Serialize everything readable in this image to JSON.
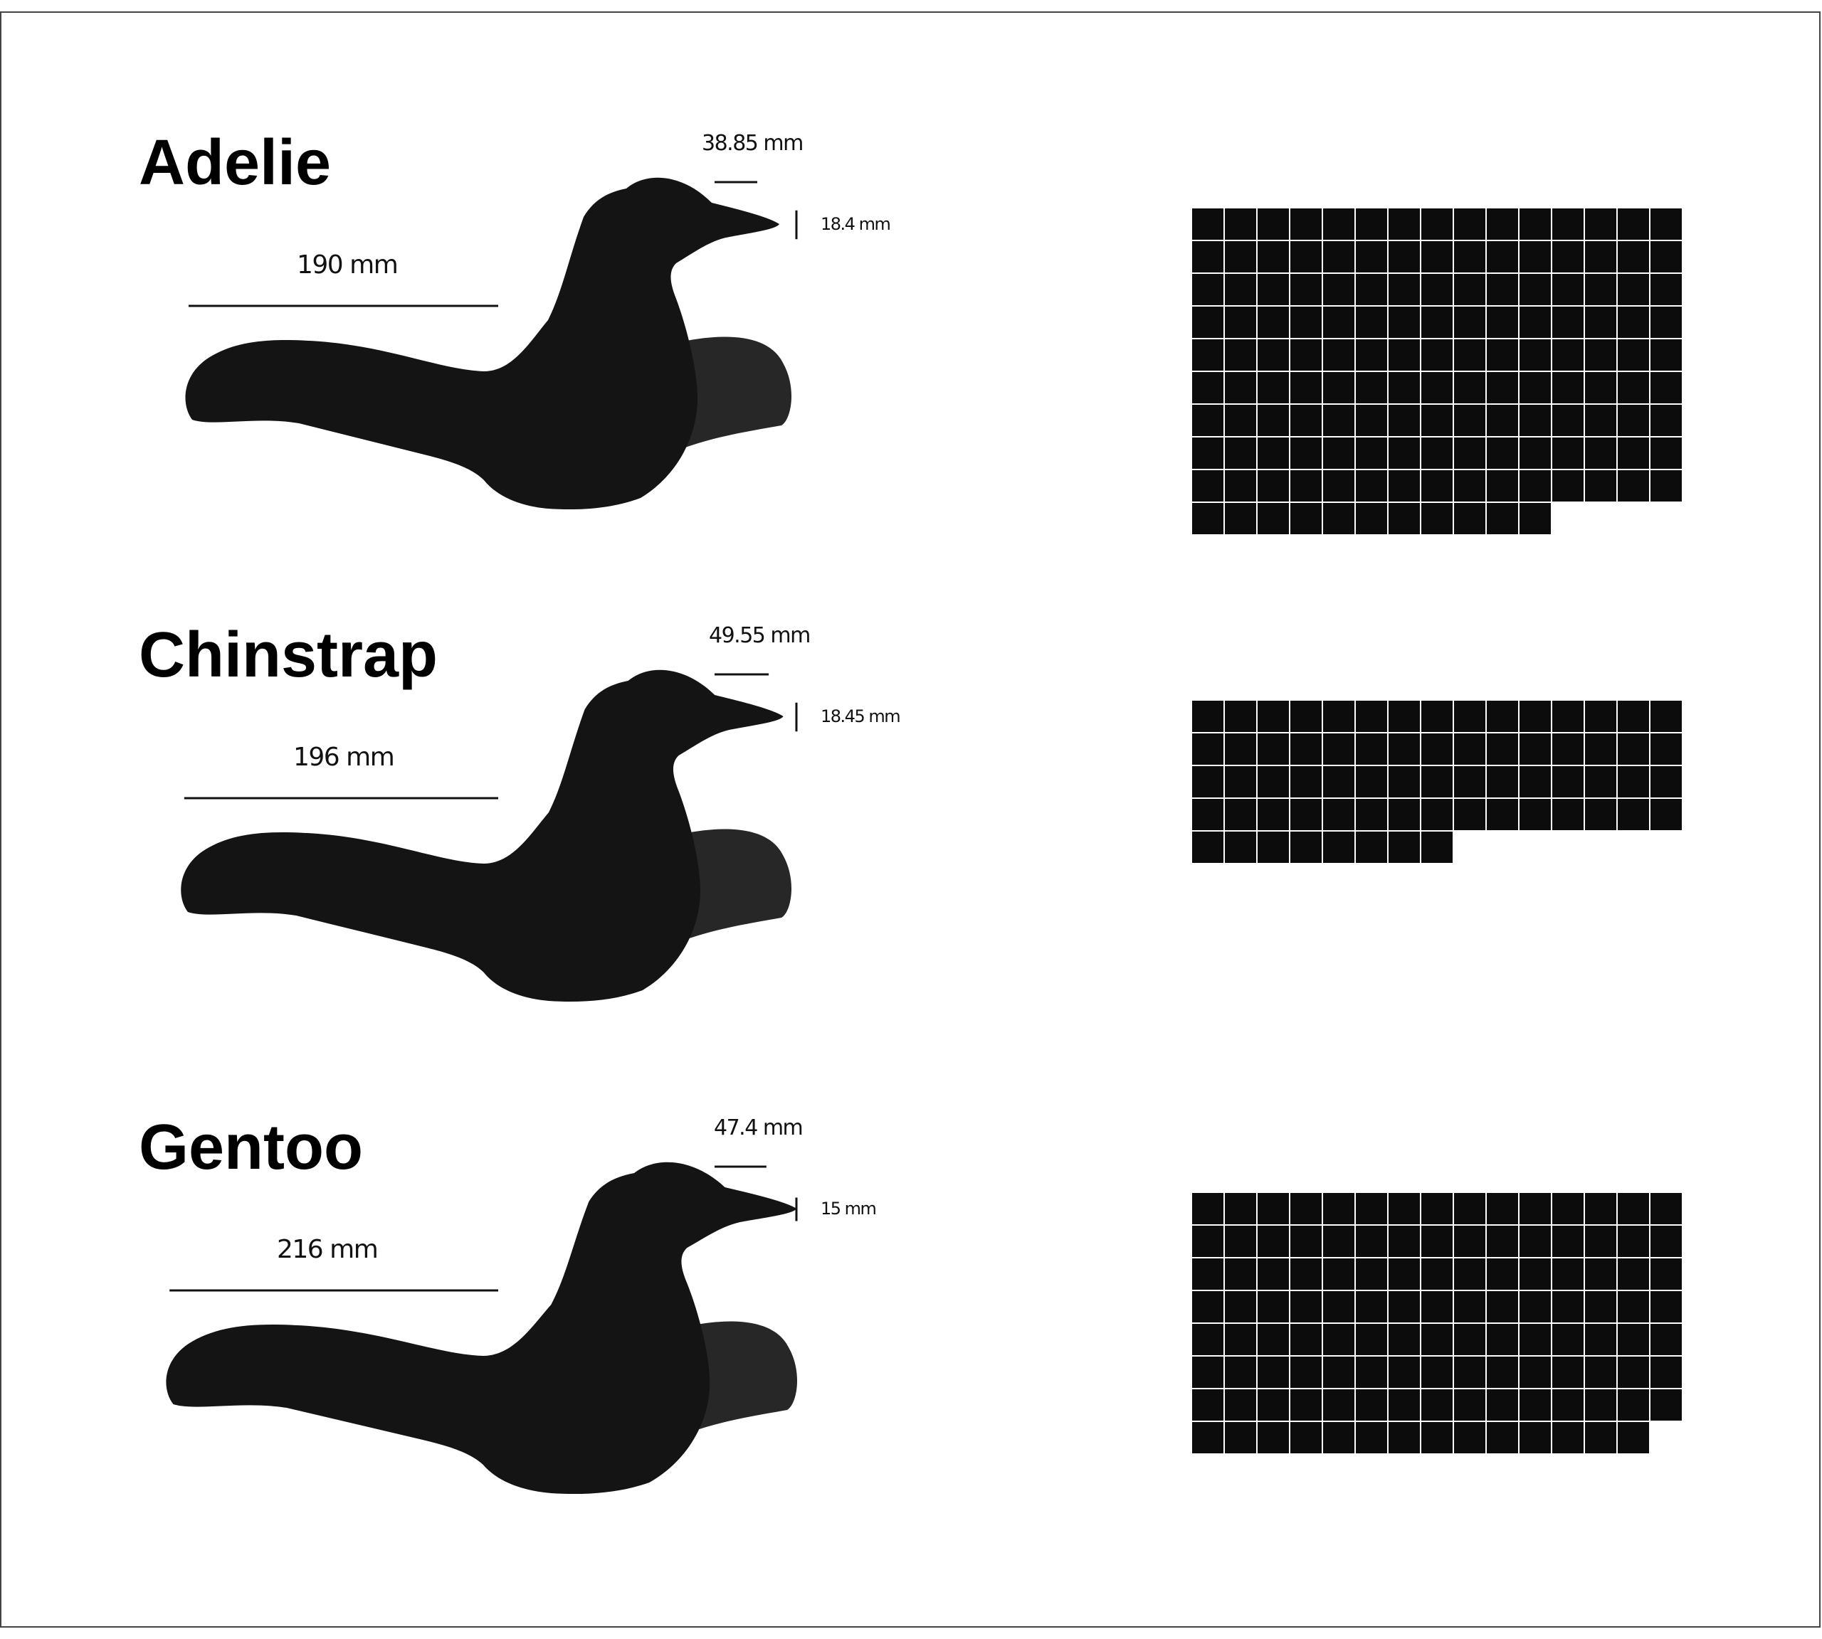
{
  "species": [
    {
      "name": "Adelie",
      "flipper_length_label": "190 mm",
      "culmen_length_label": "38.85 mm",
      "culmen_depth_label": "18.4 mm",
      "count": 146,
      "count_label": "146",
      "flipper_length_mm": 190,
      "culmen_length_mm": 38.85,
      "culmen_depth_mm": 18.4
    },
    {
      "name": "Chinstrap",
      "flipper_length_label": "196 mm",
      "culmen_length_label": "49.55 mm",
      "culmen_depth_label": "18.45 mm",
      "count": 68,
      "count_label": "68",
      "flipper_length_mm": 196,
      "culmen_length_mm": 49.55,
      "culmen_depth_mm": 18.45
    },
    {
      "name": "Gentoo",
      "flipper_length_label": "216 mm",
      "culmen_length_label": "47.4 mm",
      "culmen_depth_label": "15 mm",
      "count": 119,
      "count_label": "119",
      "flipper_length_mm": 216,
      "culmen_length_mm": 47.4,
      "culmen_depth_mm": 15
    }
  ],
  "colors": {
    "body": "#141414",
    "flipper": "#272727",
    "grid_cell": "#0c0c0c",
    "grid_line": "#ffffff",
    "text": "#000000"
  },
  "waffle": {
    "columns": 15
  }
}
